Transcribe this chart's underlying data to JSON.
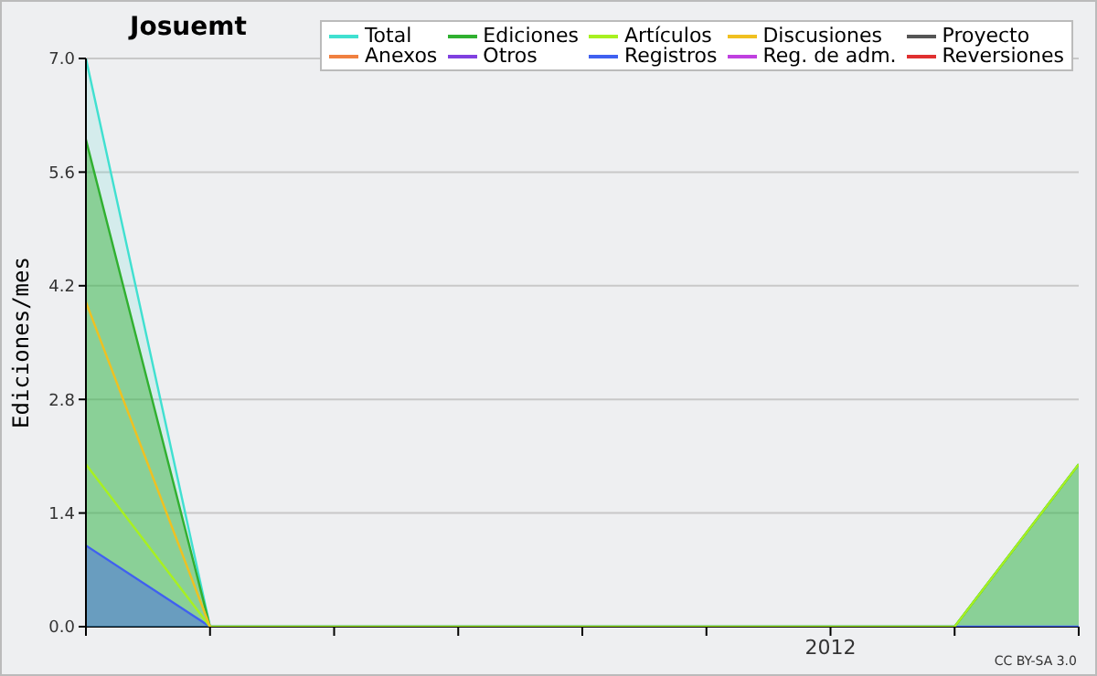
{
  "chart_data": {
    "type": "line",
    "title": "Josuemt",
    "ylabel": "Ediciones/mes",
    "categories": [
      null,
      null,
      null,
      null,
      null,
      null,
      "2012",
      null,
      null
    ],
    "ylim": [
      0,
      7
    ],
    "yticks": [
      {
        "value": 0,
        "label": "0.0"
      },
      {
        "value": 1.4,
        "label": "1.4"
      },
      {
        "value": 2.8,
        "label": "2.8"
      },
      {
        "value": 4.2,
        "label": "4.2"
      },
      {
        "value": 5.6,
        "label": "5.6"
      },
      {
        "value": 7,
        "label": "7.0"
      }
    ],
    "grid": "y",
    "legend": "top right",
    "marker": "none",
    "line_style": "solid",
    "series": [
      {
        "name": "Total",
        "type": "area",
        "color": "#40e0d0",
        "values": [
          7,
          0,
          0,
          0,
          0,
          0,
          0,
          0,
          2
        ]
      },
      {
        "name": "Ediciones",
        "type": "area",
        "color": "#30b030",
        "values": [
          6,
          0,
          0,
          0,
          0,
          0,
          0,
          0,
          2
        ]
      },
      {
        "name": "Artículos",
        "color": "#a8f020",
        "values": [
          2,
          0,
          0,
          0,
          0,
          0,
          0,
          0,
          2
        ]
      },
      {
        "name": "Discusiones",
        "color": "#f0c020",
        "values": [
          4,
          0,
          null,
          null,
          null,
          null,
          null,
          null,
          null
        ]
      },
      {
        "name": "Proyecto",
        "color": "#555555",
        "values": [
          null,
          null,
          null,
          null,
          null,
          null,
          null,
          null,
          null
        ]
      },
      {
        "name": "Anexos",
        "color": "#f08040",
        "values": [
          null,
          null,
          null,
          null,
          null,
          null,
          null,
          null,
          null
        ]
      },
      {
        "name": "Otros",
        "color": "#8040e0",
        "values": [
          null,
          null,
          null,
          null,
          null,
          null,
          null,
          null,
          null
        ]
      },
      {
        "name": "Registros",
        "type": "area",
        "color": "#4060f0",
        "values": [
          1,
          0,
          0,
          0,
          0,
          0,
          0,
          0,
          0
        ]
      },
      {
        "name": "Reg. de adm.",
        "color": "#c040e0",
        "values": [
          null,
          null,
          null,
          null,
          null,
          null,
          null,
          null,
          null
        ]
      },
      {
        "name": "Reversiones",
        "color": "#e03030",
        "values": [
          null,
          null,
          null,
          null,
          null,
          null,
          null,
          null,
          null
        ]
      }
    ],
    "annotations": [
      "CC BY-SA 3.0"
    ]
  }
}
